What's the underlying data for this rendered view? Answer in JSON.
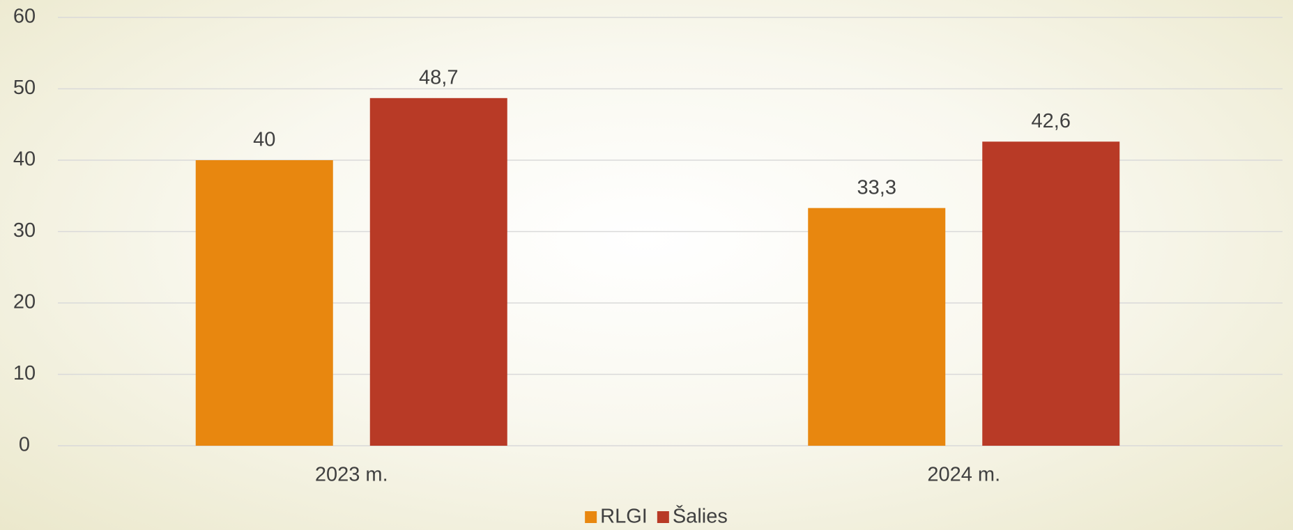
{
  "chart_data": {
    "type": "bar",
    "categories": [
      "2023 m.",
      "2024 m."
    ],
    "series": [
      {
        "name": "RLGI",
        "color": "#e8870f",
        "values": [
          40,
          33.3
        ],
        "value_labels": [
          "40",
          "33,3"
        ]
      },
      {
        "name": "Šalies",
        "color": "#b83a26",
        "values": [
          48.7,
          42.6
        ],
        "value_labels": [
          "48,7",
          "42,6"
        ]
      }
    ],
    "ylim": [
      0,
      60
    ],
    "yticks": [
      0,
      10,
      20,
      30,
      40,
      50,
      60
    ],
    "grid": true,
    "legend": "bottom"
  }
}
